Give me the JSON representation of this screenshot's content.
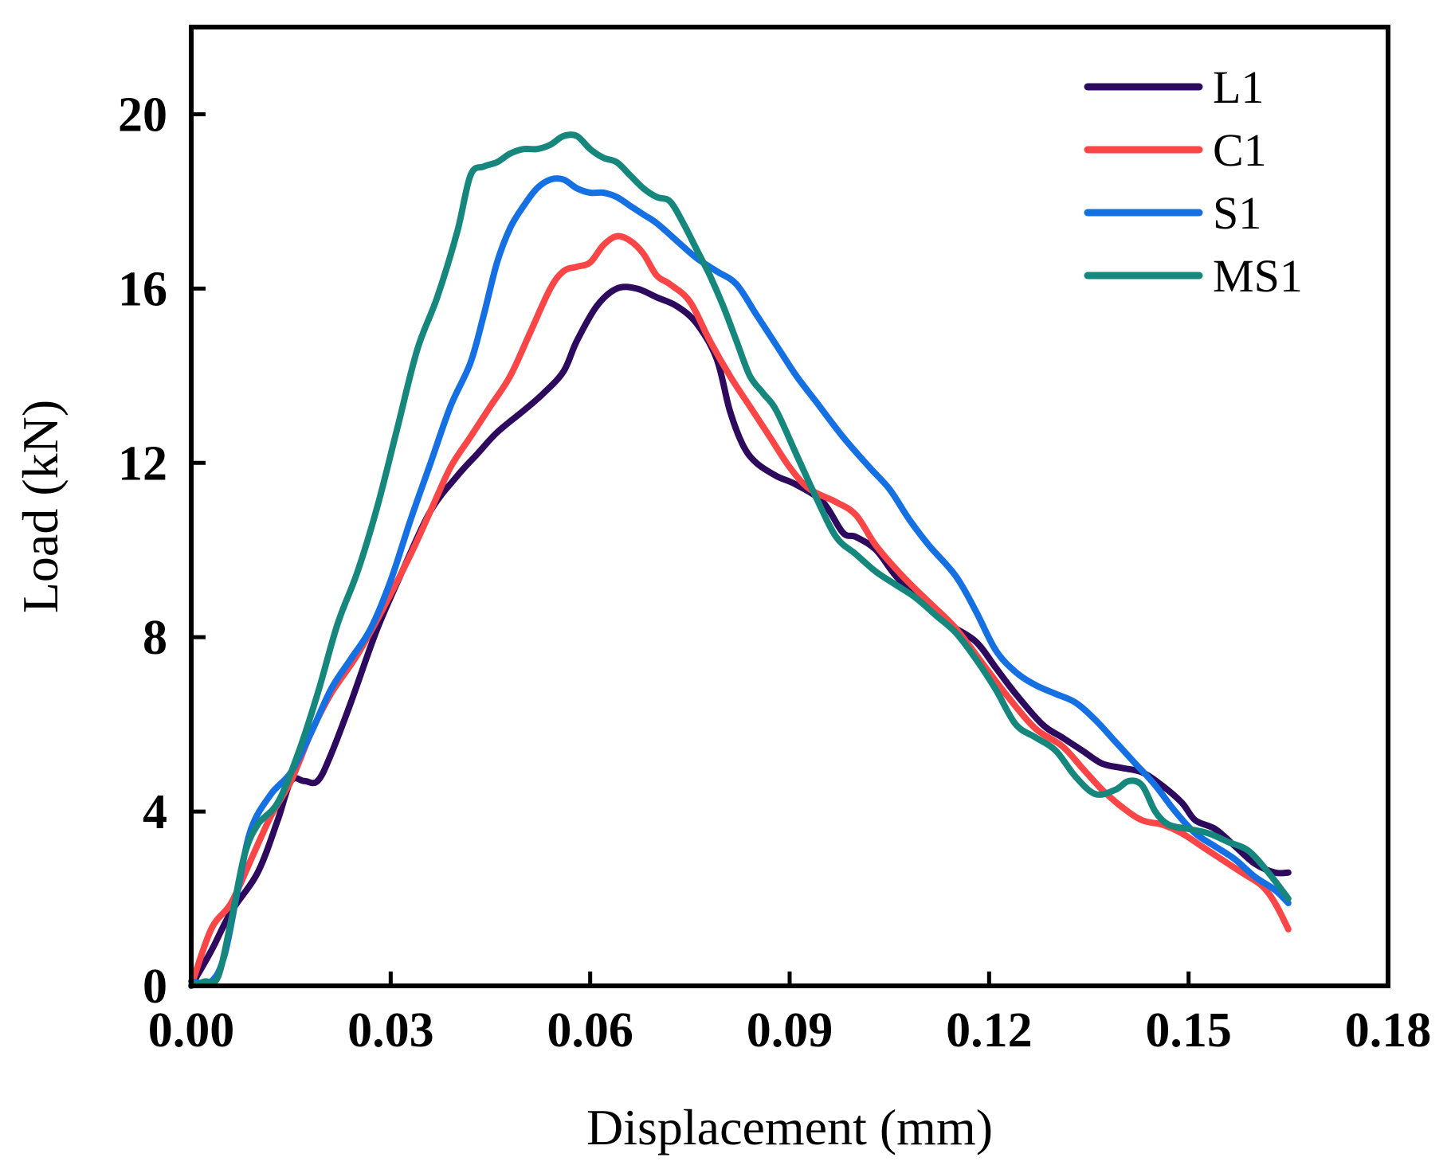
{
  "chart_data": {
    "type": "line",
    "title": "",
    "xlabel": "Displacement (mm)",
    "ylabel": "Load (kN)",
    "xlim": [
      0,
      0.18
    ],
    "ylim": [
      0,
      22
    ],
    "xticks": [
      0.0,
      0.03,
      0.06,
      0.09,
      0.12,
      0.15,
      0.18
    ],
    "xtick_labels": [
      "0.00",
      "0.03",
      "0.06",
      "0.09",
      "0.12",
      "0.15",
      "0.18"
    ],
    "yticks": [
      0,
      4,
      8,
      12,
      16,
      20
    ],
    "ytick_labels": [
      "0",
      "4",
      "8",
      "12",
      "16",
      "20"
    ],
    "grid": false,
    "legend_position": "top-right",
    "series": [
      {
        "name": "L1",
        "color": "#2d0a5e",
        "x": [
          0.0,
          0.003,
          0.006,
          0.01,
          0.013,
          0.015,
          0.017,
          0.019,
          0.021,
          0.024,
          0.028,
          0.032,
          0.036,
          0.04,
          0.043,
          0.046,
          0.05,
          0.053,
          0.056,
          0.058,
          0.061,
          0.064,
          0.067,
          0.07,
          0.073,
          0.076,
          0.079,
          0.081,
          0.083,
          0.085,
          0.088,
          0.091,
          0.095,
          0.098,
          0.1,
          0.103,
          0.106,
          0.11,
          0.114,
          0.118,
          0.121,
          0.124,
          0.128,
          0.131,
          0.134,
          0.137,
          0.14,
          0.143,
          0.146,
          0.149,
          0.151,
          0.154,
          0.157,
          0.16,
          0.163,
          0.165
        ],
        "y": [
          0.0,
          0.8,
          1.7,
          2.6,
          3.8,
          4.7,
          4.7,
          4.7,
          5.3,
          6.5,
          8.2,
          9.6,
          10.9,
          11.7,
          12.2,
          12.7,
          13.2,
          13.6,
          14.1,
          14.8,
          15.6,
          16.0,
          16.0,
          15.8,
          15.6,
          15.2,
          14.4,
          13.2,
          12.4,
          12.0,
          11.7,
          11.5,
          11.1,
          10.4,
          10.3,
          10.0,
          9.4,
          8.8,
          8.3,
          7.9,
          7.3,
          6.7,
          6.0,
          5.7,
          5.4,
          5.1,
          5.0,
          4.9,
          4.6,
          4.2,
          3.8,
          3.6,
          3.2,
          2.8,
          2.6,
          2.6
        ]
      },
      {
        "name": "C1",
        "color": "#fa4646",
        "x": [
          0.0,
          0.003,
          0.006,
          0.009,
          0.012,
          0.015,
          0.018,
          0.021,
          0.025,
          0.029,
          0.033,
          0.036,
          0.039,
          0.042,
          0.045,
          0.048,
          0.051,
          0.054,
          0.056,
          0.058,
          0.06,
          0.062,
          0.064,
          0.066,
          0.068,
          0.07,
          0.072,
          0.075,
          0.078,
          0.081,
          0.084,
          0.087,
          0.09,
          0.093,
          0.097,
          0.1,
          0.103,
          0.107,
          0.111,
          0.115,
          0.119,
          0.123,
          0.127,
          0.131,
          0.134,
          0.137,
          0.14,
          0.143,
          0.146,
          0.149,
          0.152,
          0.155,
          0.158,
          0.161,
          0.163,
          0.165
        ],
        "y": [
          0.0,
          1.3,
          1.9,
          2.9,
          3.9,
          4.7,
          5.8,
          6.7,
          7.6,
          8.7,
          9.9,
          10.9,
          11.9,
          12.6,
          13.3,
          14.0,
          15.0,
          16.0,
          16.4,
          16.5,
          16.6,
          17.0,
          17.2,
          17.1,
          16.8,
          16.3,
          16.1,
          15.7,
          14.8,
          14.0,
          13.3,
          12.6,
          11.9,
          11.4,
          11.1,
          10.8,
          10.1,
          9.4,
          8.8,
          8.2,
          7.4,
          6.6,
          5.9,
          5.5,
          5.0,
          4.5,
          4.1,
          3.8,
          3.7,
          3.5,
          3.2,
          2.9,
          2.6,
          2.3,
          1.9,
          1.3
        ]
      },
      {
        "name": "S1",
        "color": "#1470e3",
        "x": [
          0.0,
          0.003,
          0.005,
          0.007,
          0.009,
          0.012,
          0.015,
          0.018,
          0.021,
          0.024,
          0.027,
          0.03,
          0.033,
          0.036,
          0.039,
          0.042,
          0.044,
          0.046,
          0.048,
          0.05,
          0.052,
          0.054,
          0.056,
          0.058,
          0.06,
          0.062,
          0.064,
          0.066,
          0.068,
          0.07,
          0.073,
          0.076,
          0.079,
          0.082,
          0.085,
          0.088,
          0.091,
          0.094,
          0.098,
          0.102,
          0.105,
          0.108,
          0.111,
          0.115,
          0.118,
          0.121,
          0.124,
          0.127,
          0.13,
          0.133,
          0.136,
          0.139,
          0.142,
          0.145,
          0.148,
          0.151,
          0.154,
          0.157,
          0.16,
          0.163,
          0.165
        ],
        "y": [
          0.1,
          0.1,
          0.7,
          2.2,
          3.6,
          4.4,
          4.9,
          5.8,
          6.8,
          7.5,
          8.2,
          9.3,
          10.7,
          12.0,
          13.3,
          14.3,
          15.4,
          16.6,
          17.4,
          17.9,
          18.3,
          18.5,
          18.5,
          18.3,
          18.2,
          18.2,
          18.1,
          17.9,
          17.7,
          17.5,
          17.1,
          16.7,
          16.4,
          16.1,
          15.4,
          14.7,
          14.0,
          13.4,
          12.6,
          11.9,
          11.4,
          10.7,
          10.1,
          9.4,
          8.6,
          7.7,
          7.2,
          6.9,
          6.7,
          6.5,
          6.1,
          5.6,
          5.1,
          4.6,
          4.0,
          3.5,
          3.2,
          2.9,
          2.5,
          2.2,
          1.9
        ]
      },
      {
        "name": "MS1",
        "color": "#15877c",
        "x": [
          0.0,
          0.002,
          0.004,
          0.006,
          0.008,
          0.01,
          0.013,
          0.016,
          0.019,
          0.022,
          0.025,
          0.028,
          0.031,
          0.034,
          0.037,
          0.04,
          0.042,
          0.044,
          0.046,
          0.048,
          0.05,
          0.052,
          0.054,
          0.056,
          0.058,
          0.06,
          0.062,
          0.064,
          0.066,
          0.068,
          0.07,
          0.072,
          0.074,
          0.076,
          0.078,
          0.08,
          0.082,
          0.084,
          0.086,
          0.088,
          0.091,
          0.094,
          0.097,
          0.1,
          0.103,
          0.106,
          0.109,
          0.112,
          0.115,
          0.118,
          0.121,
          0.124,
          0.127,
          0.13,
          0.133,
          0.136,
          0.139,
          0.141,
          0.143,
          0.145,
          0.147,
          0.15,
          0.153,
          0.156,
          0.159,
          0.162,
          0.165
        ],
        "y": [
          0.0,
          0.1,
          0.2,
          1.5,
          3.0,
          3.7,
          4.2,
          5.3,
          6.7,
          8.3,
          9.5,
          11.0,
          12.8,
          14.6,
          15.8,
          17.3,
          18.6,
          18.8,
          18.9,
          19.1,
          19.2,
          19.2,
          19.3,
          19.5,
          19.5,
          19.2,
          19.0,
          18.9,
          18.6,
          18.3,
          18.1,
          18.0,
          17.5,
          16.9,
          16.3,
          15.6,
          14.8,
          14.0,
          13.6,
          13.2,
          12.2,
          11.2,
          10.3,
          9.9,
          9.5,
          9.2,
          8.9,
          8.5,
          8.1,
          7.5,
          6.8,
          6.0,
          5.7,
          5.4,
          4.8,
          4.4,
          4.5,
          4.7,
          4.6,
          4.0,
          3.7,
          3.6,
          3.5,
          3.3,
          3.1,
          2.6,
          2.0
        ]
      }
    ]
  }
}
